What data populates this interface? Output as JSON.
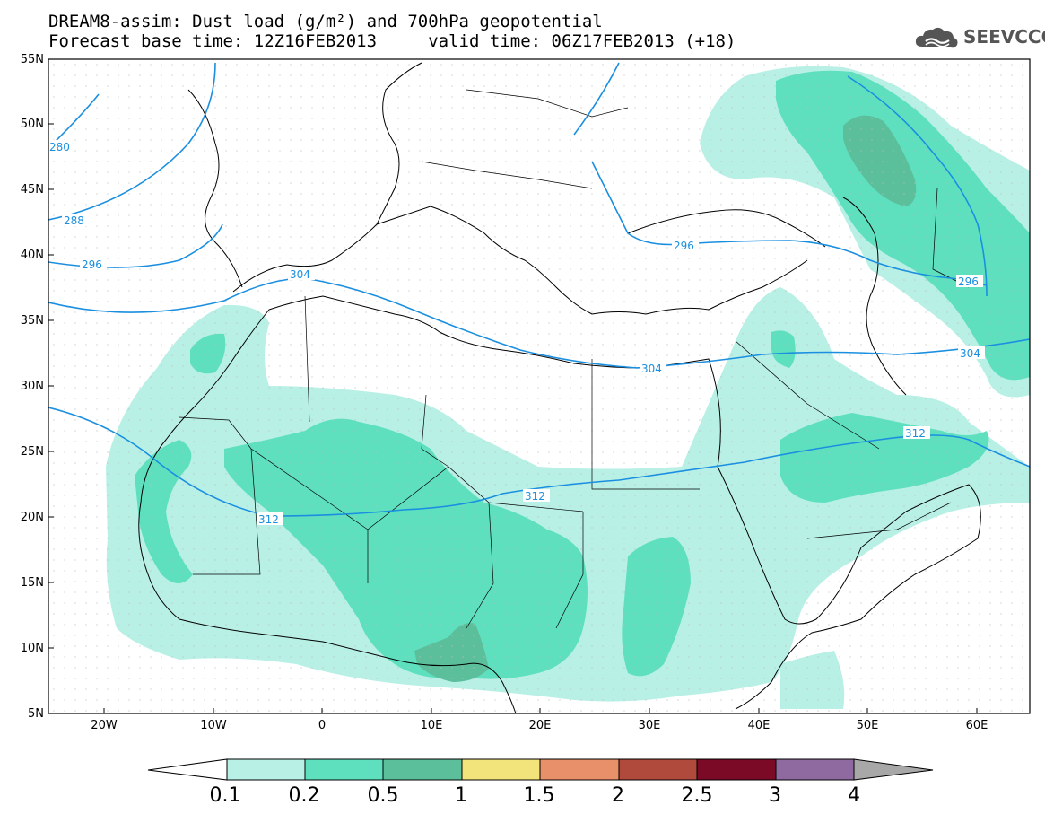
{
  "title": {
    "line1": "DREAM8-assim: Dust load (g/m²) and 700hPa geopotential",
    "line2": "Forecast base time: 12Z16FEB2013     valid time: 06Z17FEB2013 (+18)"
  },
  "logo": {
    "text": "SEEVCCC",
    "icon": "cloud-logo-icon"
  },
  "map": {
    "lon_range": [
      -25,
      65
    ],
    "lat_range": [
      5,
      55
    ],
    "lat_ticks": [
      "5N",
      "10N",
      "15N",
      "20N",
      "25N",
      "30N",
      "35N",
      "40N",
      "45N",
      "50N",
      "55N"
    ],
    "lon_ticks": [
      "20W",
      "10W",
      "0",
      "10E",
      "20E",
      "30E",
      "40E",
      "50E",
      "60E"
    ],
    "contour_labels": [
      "280",
      "288",
      "296",
      "304",
      "296",
      "304",
      "312",
      "312",
      "312",
      "304",
      "296"
    ],
    "contour_color": "#1a8fe0"
  },
  "colorbar": {
    "labels": [
      "0.1",
      "0.2",
      "0.5",
      "1",
      "1.5",
      "2",
      "2.5",
      "3",
      "4"
    ],
    "colors": [
      "#ffffff",
      "#b8f0e6",
      "#5ee0bf",
      "#5cbf9c",
      "#f2e37a",
      "#e8906a",
      "#b04a3c",
      "#7a0a26",
      "#8e6aa0",
      "#a8a8a8"
    ]
  }
}
